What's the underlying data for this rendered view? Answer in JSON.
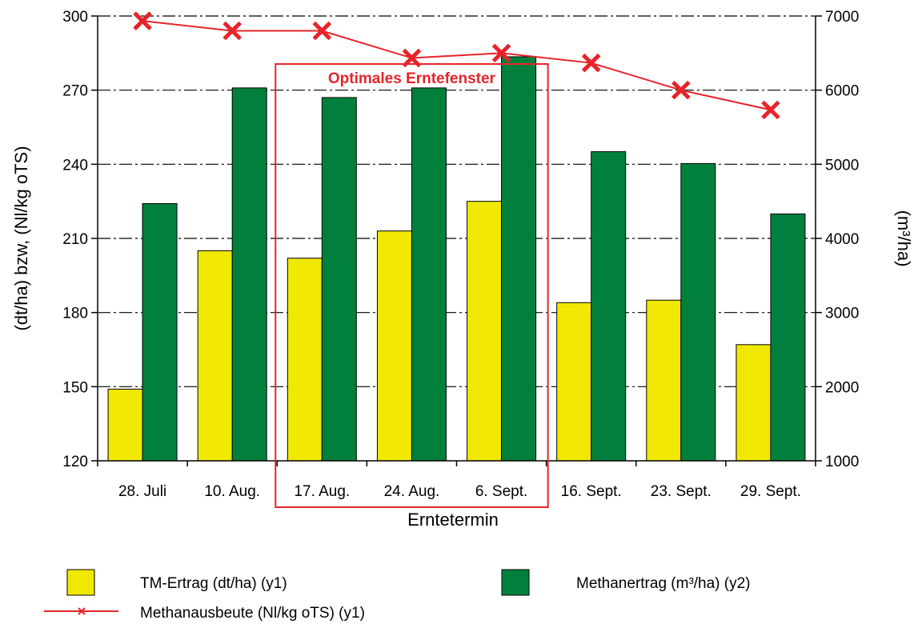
{
  "chart_data": {
    "type": "bar",
    "categories": [
      "28. Juli",
      "10. Aug.",
      "17. Aug.",
      "24. Aug.",
      "6. Sept.",
      "16. Sept.",
      "23. Sept.",
      "29. Sept."
    ],
    "xlabel": "Erntetermin",
    "ylabel": "(dt/ha) bzw, (Nl/kg oTS)",
    "y2label": "(m³/ha)",
    "ylim": [
      120,
      300
    ],
    "y2lim": [
      1000,
      7000
    ],
    "yticks": [
      "120",
      "150",
      "180",
      "210",
      "240",
      "270",
      "300"
    ],
    "y2ticks": [
      "1000",
      "2000",
      "3000",
      "4000",
      "5000",
      "6000",
      "7000"
    ],
    "grid": "horizontal dash-dot",
    "series": [
      {
        "name": "TM-Ertrag (dt/ha) (y1)",
        "type": "bar",
        "axis": "y1",
        "color": "#f0e800",
        "values": [
          149,
          205,
          202,
          213,
          225,
          184,
          185,
          167
        ]
      },
      {
        "name": "Methanertrag (m³/ha) (y2)",
        "type": "bar",
        "axis": "y2",
        "color": "#00803c",
        "values": [
          4470,
          6030,
          5900,
          6030,
          6450,
          5170,
          5010,
          4330
        ]
      },
      {
        "name": "Methanausbeute (Nl/kg oTS) (y1)",
        "type": "line",
        "axis": "y1",
        "color": "#e8232a",
        "values": [
          298,
          294,
          294,
          283,
          285,
          281,
          270,
          262
        ]
      }
    ],
    "annotation": {
      "text": "Optimales Erntefenster",
      "from": "17. Aug.",
      "to": "6. Sept.",
      "color": "#e8232a"
    },
    "legend_position": "bottom"
  }
}
